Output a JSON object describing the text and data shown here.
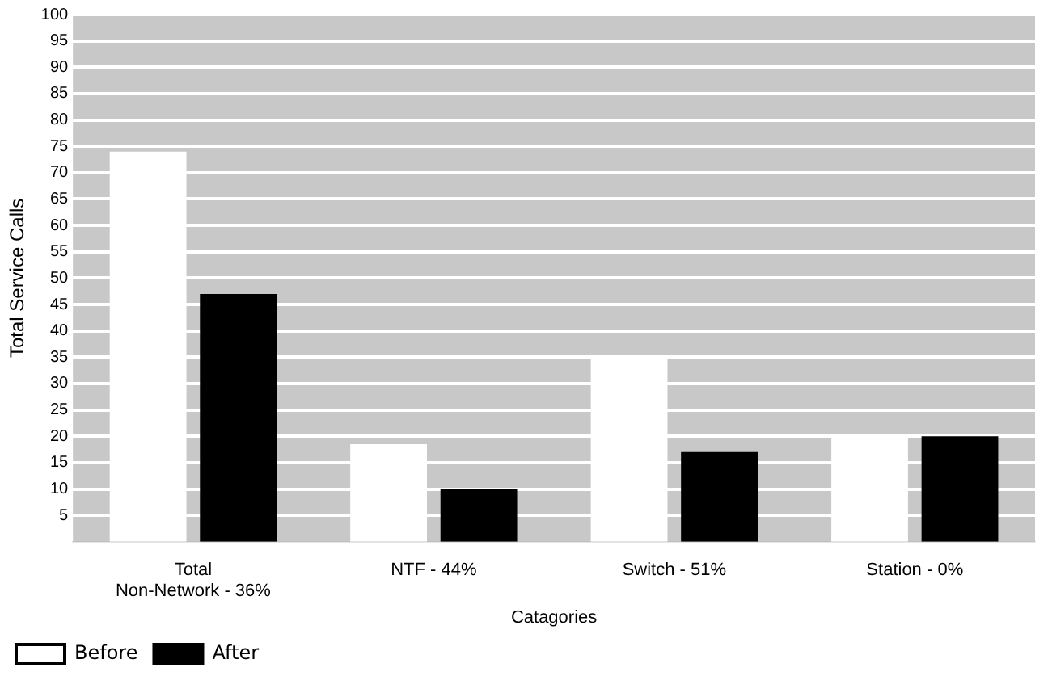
{
  "chart_data": {
    "type": "bar",
    "xlabel": "Catagories",
    "ylabel": "Total Service Calls",
    "categories": [
      "Total\nNon-Network - 36%",
      "NTF - 44%",
      "Switch - 51%",
      "Station - 0%"
    ],
    "series": [
      {
        "name": "Before",
        "color": "#ffffff",
        "values": [
          74,
          18.5,
          35,
          20
        ]
      },
      {
        "name": "After",
        "color": "#000000",
        "values": [
          47,
          10,
          17,
          20
        ]
      }
    ],
    "ylim": [
      0,
      100
    ],
    "yticks": [
      5,
      10,
      15,
      20,
      25,
      30,
      35,
      40,
      45,
      50,
      55,
      60,
      65,
      70,
      75,
      80,
      85,
      90,
      95,
      100
    ],
    "grid": "y",
    "legend": "bottom left"
  }
}
